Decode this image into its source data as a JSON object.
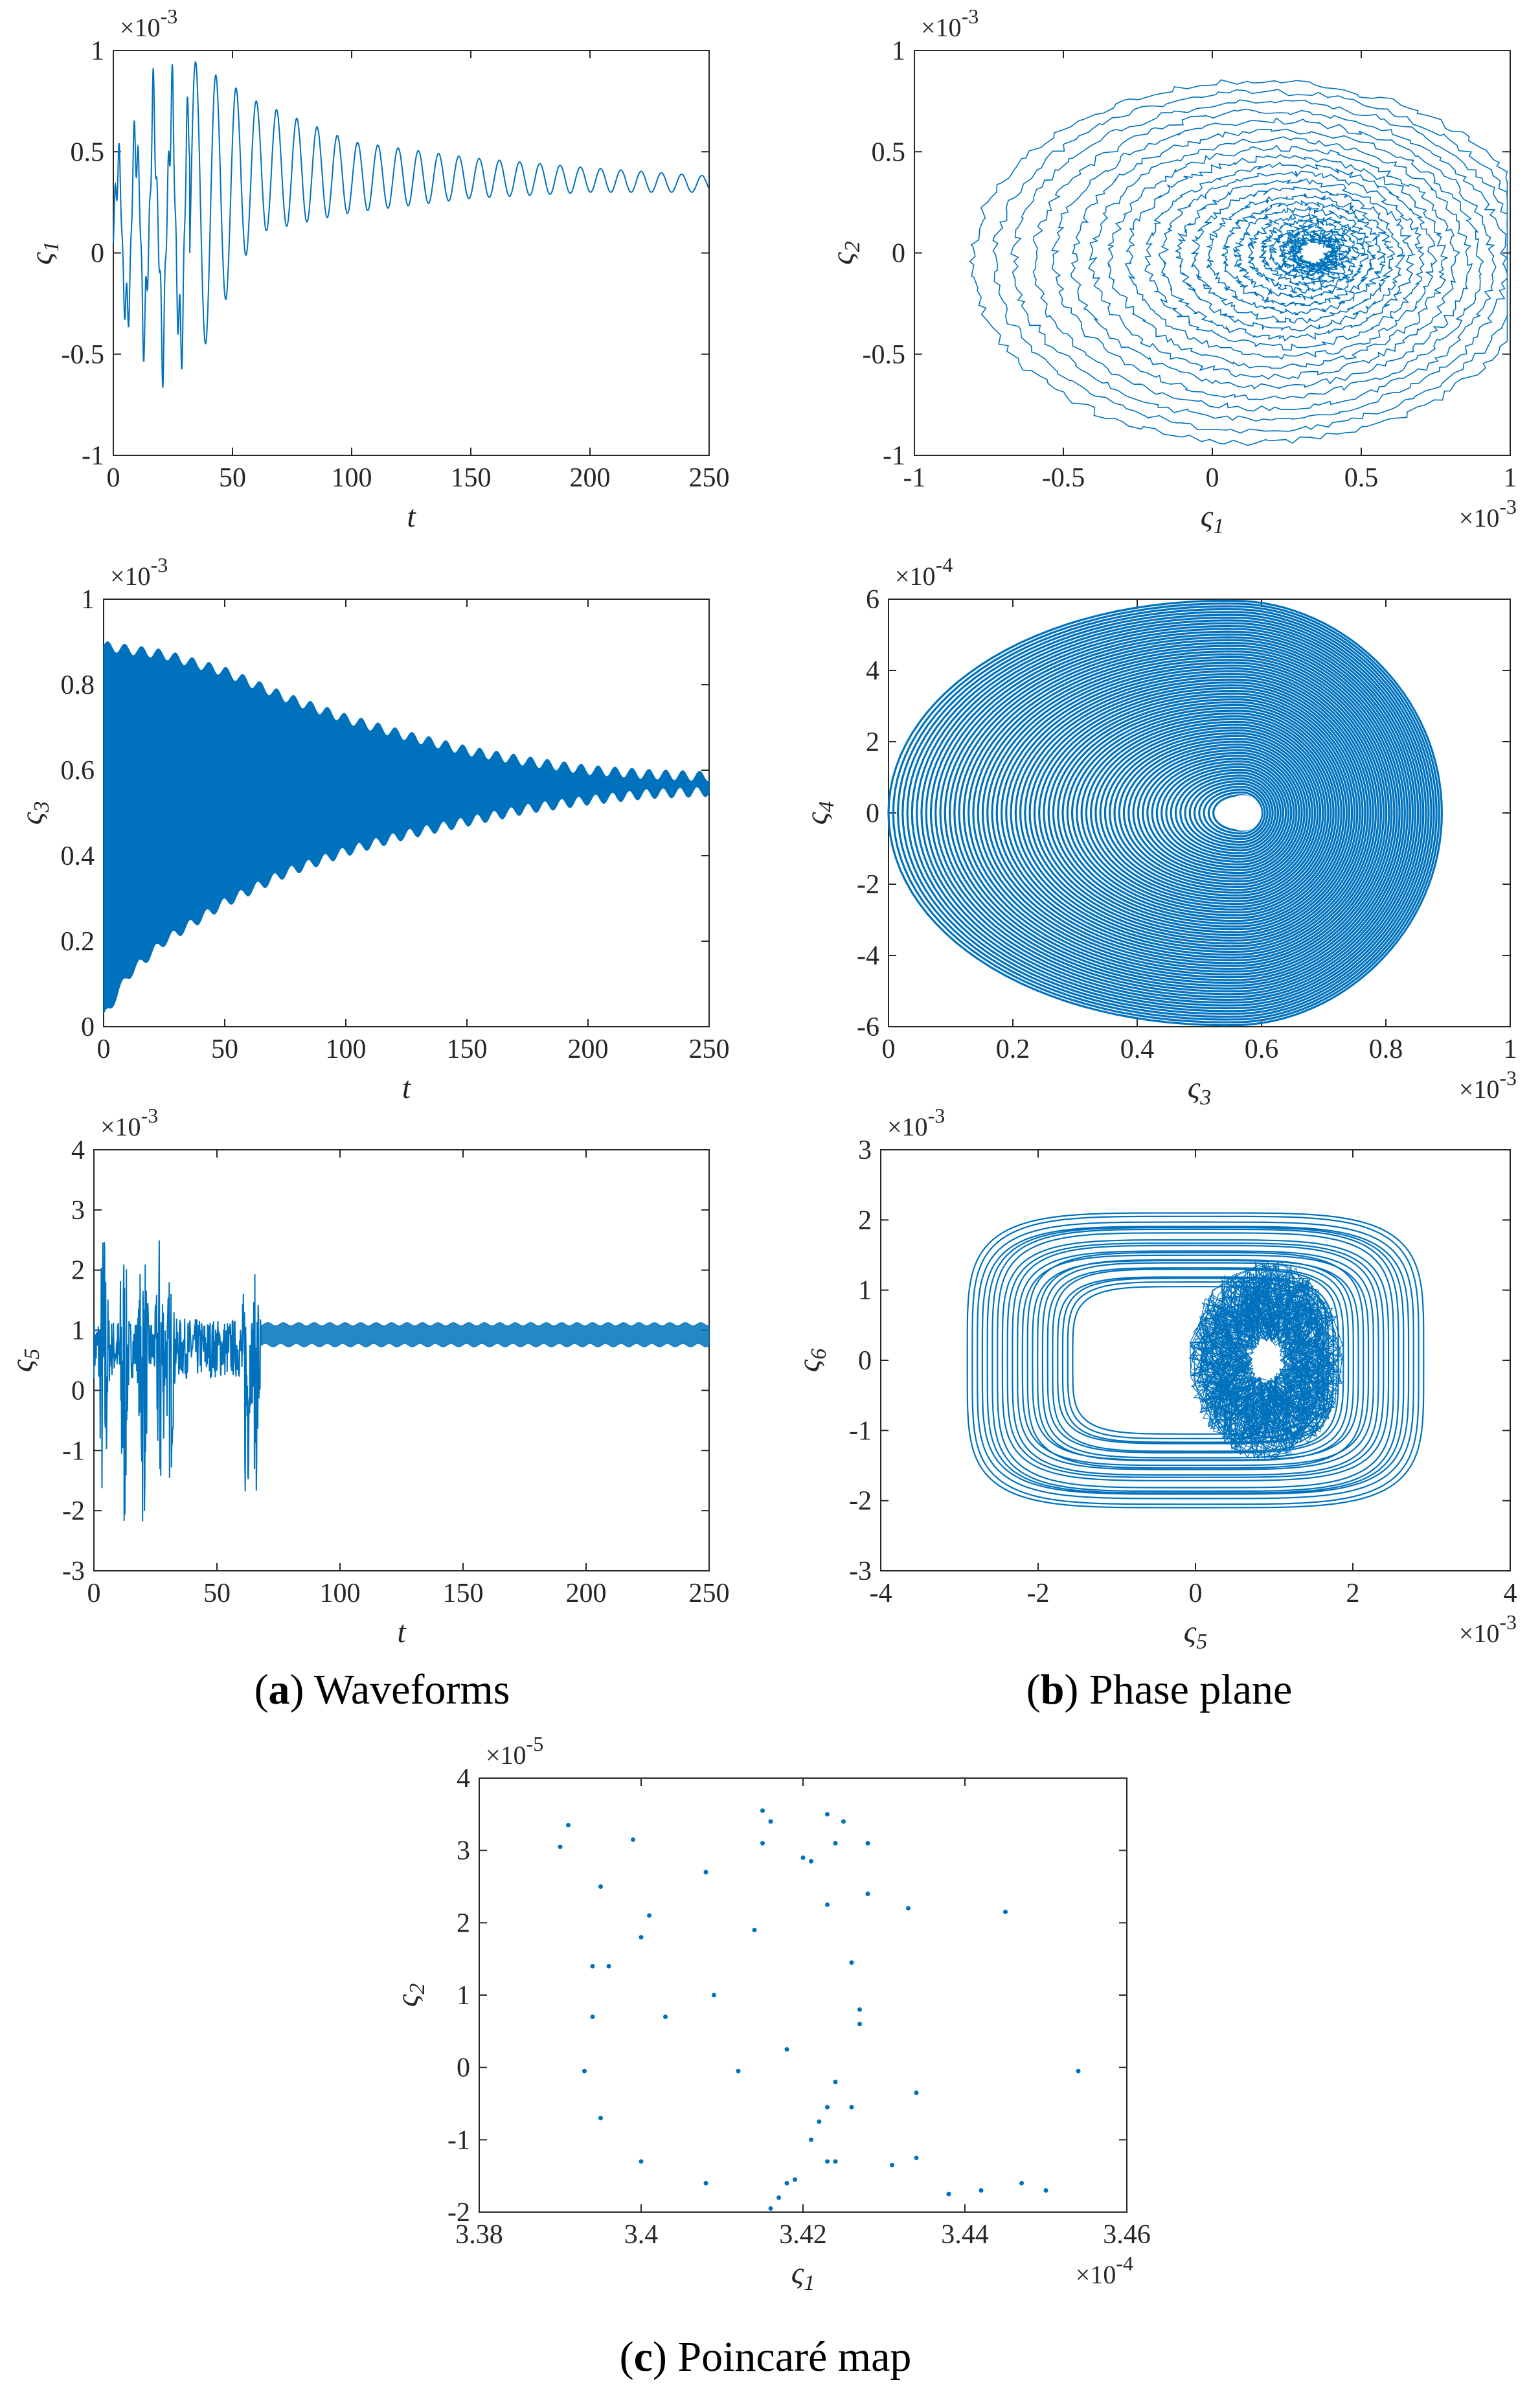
{
  "colors": {
    "line": "#0072BD",
    "axis": "#262626",
    "background": "#ffffff"
  },
  "captions": {
    "a": {
      "label": "a",
      "text": "Waveforms"
    },
    "b": {
      "label": "b",
      "text": "Phase plane"
    },
    "c": {
      "label": "c",
      "text": "Poincaré map"
    }
  },
  "chart_data": [
    {
      "id": "wave1",
      "type": "line",
      "panel": "a",
      "xlabel": "t",
      "ylabel": "ς1",
      "xlim": [
        0,
        250
      ],
      "ylim": [
        -1,
        1
      ],
      "xticks": [
        0,
        50,
        100,
        150,
        200,
        250
      ],
      "yticks": [
        -1,
        -0.5,
        0,
        0.5,
        1
      ],
      "xtick_labels": [
        "0",
        "50",
        "100",
        "150",
        "200",
        "250"
      ],
      "ytick_labels": [
        "-1",
        "-0.5",
        "0",
        "0.5",
        "1"
      ],
      "y_exponent": "×10-3",
      "x_exponent": "",
      "envelope": [
        [
          0,
          0.55,
          -0.45
        ],
        [
          15,
          0.9,
          -0.6
        ],
        [
          27,
          1.0,
          -0.75
        ],
        [
          60,
          0.75,
          0.1
        ],
        [
          100,
          0.55,
          0.2
        ],
        [
          150,
          0.47,
          0.27
        ],
        [
          200,
          0.42,
          0.3
        ],
        [
          250,
          0.38,
          0.3
        ]
      ],
      "equilibrium": 0.34,
      "period": 8.5,
      "grid": false
    },
    {
      "id": "phase12",
      "type": "line",
      "panel": "b",
      "xlabel": "ς1",
      "ylabel": "ς2",
      "xlim": [
        -1,
        1
      ],
      "ylim": [
        -1,
        1
      ],
      "xticks": [
        -1,
        -0.5,
        0,
        0.5,
        1
      ],
      "yticks": [
        -1,
        -0.5,
        0,
        0.5,
        1
      ],
      "xtick_labels": [
        "-1",
        "-0.5",
        "0",
        "0.5",
        "1"
      ],
      "ytick_labels": [
        "-1",
        "-0.5",
        "0",
        "0.5",
        "1"
      ],
      "y_exponent": "×10-3",
      "x_exponent": "×10-3",
      "center": [
        0.34,
        0.0
      ],
      "outer_orbit": {
        "x_range": [
          -0.73,
          0.99
        ],
        "y_range": [
          -0.92,
          0.8
        ]
      },
      "grid": false
    },
    {
      "id": "wave3",
      "type": "area",
      "panel": "a",
      "xlabel": "t",
      "ylabel": "ς3",
      "xlim": [
        0,
        250
      ],
      "ylim": [
        0,
        1
      ],
      "xticks": [
        0,
        50,
        100,
        150,
        200,
        250
      ],
      "yticks": [
        0,
        0.2,
        0.4,
        0.6,
        0.8,
        1
      ],
      "xtick_labels": [
        "0",
        "50",
        "100",
        "150",
        "200",
        "250"
      ],
      "ytick_labels": [
        "0",
        "0.2",
        "0.4",
        "0.6",
        "0.8",
        "1"
      ],
      "y_exponent": "×10-3",
      "x_exponent": "",
      "upper": [
        [
          0,
          0.89
        ],
        [
          25,
          0.87
        ],
        [
          50,
          0.83
        ],
        [
          75,
          0.77
        ],
        [
          100,
          0.72
        ],
        [
          125,
          0.68
        ],
        [
          150,
          0.645
        ],
        [
          175,
          0.62
        ],
        [
          200,
          0.6
        ],
        [
          225,
          0.59
        ],
        [
          250,
          0.585
        ]
      ],
      "lower": [
        [
          0,
          0.02
        ],
        [
          10,
          0.12
        ],
        [
          25,
          0.2
        ],
        [
          50,
          0.29
        ],
        [
          75,
          0.36
        ],
        [
          100,
          0.41
        ],
        [
          125,
          0.45
        ],
        [
          150,
          0.48
        ],
        [
          175,
          0.51
        ],
        [
          200,
          0.53
        ],
        [
          225,
          0.545
        ],
        [
          250,
          0.55
        ]
      ],
      "grid": false
    },
    {
      "id": "phase34",
      "type": "line",
      "panel": "b",
      "xlabel": "ς3",
      "ylabel": "ς4",
      "xlim": [
        0,
        1
      ],
      "ylim": [
        -6,
        6
      ],
      "xticks": [
        0,
        0.2,
        0.4,
        0.6,
        0.8,
        1
      ],
      "yticks": [
        -6,
        -4,
        -2,
        0,
        2,
        4,
        6
      ],
      "xtick_labels": [
        "0",
        "0.2",
        "0.4",
        "0.6",
        "0.8",
        "1"
      ],
      "ytick_labels": [
        "-6",
        "-4",
        "-2",
        "0",
        "2",
        "4",
        "6"
      ],
      "y_exponent": "×10-4",
      "x_exponent": "×10-3",
      "center": [
        0.57,
        0
      ],
      "hole": [
        0.57,
        0,
        0.03,
        0.5
      ],
      "outer_orbit": {
        "x_range": [
          0.0,
          0.89
        ],
        "y_range": [
          -6,
          6
        ]
      },
      "grid": false
    },
    {
      "id": "wave5",
      "type": "line",
      "panel": "a",
      "xlabel": "t",
      "ylabel": "ς5",
      "xlim": [
        0,
        250
      ],
      "ylim": [
        -3,
        4
      ],
      "xticks": [
        0,
        50,
        100,
        150,
        200,
        250
      ],
      "yticks": [
        -3,
        -2,
        -1,
        0,
        1,
        2,
        3,
        4
      ],
      "xtick_labels": [
        "0",
        "50",
        "100",
        "150",
        "200",
        "250"
      ],
      "ytick_labels": [
        "-3",
        "-2",
        "-1",
        "0",
        "1",
        "2",
        "3",
        "4"
      ],
      "y_exponent": "×10-3",
      "x_exponent": "",
      "settled_band": [
        0.75,
        1.1
      ],
      "transient_end": 68,
      "bursts": [
        [
          4,
          3.0,
          -2.8
        ],
        [
          12,
          2.8,
          -2.9
        ],
        [
          20,
          2.9,
          -2.5
        ],
        [
          27,
          2.9,
          -2.3
        ],
        [
          31,
          2.0,
          -1.6
        ],
        [
          62,
          2.3,
          -2.2
        ],
        [
          66,
          2.1,
          -1.8
        ]
      ],
      "grid": false
    },
    {
      "id": "phase56",
      "type": "line",
      "panel": "b",
      "xlabel": "ς5",
      "ylabel": "ς6",
      "xlim": [
        -4,
        4
      ],
      "ylim": [
        -3,
        3
      ],
      "xticks": [
        -4,
        -2,
        0,
        2,
        4
      ],
      "yticks": [
        -3,
        -2,
        -1,
        0,
        1,
        2,
        3
      ],
      "xtick_labels": [
        "-4",
        "-2",
        "0",
        "2",
        "4"
      ],
      "ytick_labels": [
        "-3",
        "-2",
        "-1",
        "0",
        "1",
        "2",
        "3"
      ],
      "y_exponent": "×10-3",
      "x_exponent": "×10-3",
      "center": [
        0.9,
        0
      ],
      "outer_orbit": {
        "x_range": [
          -2.9,
          2.9
        ],
        "y_range": [
          -2.1,
          2.1
        ]
      },
      "grid": false
    },
    {
      "id": "poincare",
      "type": "scatter",
      "panel": "c",
      "xlabel": "ς1",
      "ylabel": "ς2",
      "xlim": [
        3.38,
        3.46
      ],
      "ylim": [
        -2,
        4
      ],
      "xticks": [
        3.38,
        3.4,
        3.42,
        3.44,
        3.46
      ],
      "yticks": [
        -2,
        -1,
        0,
        1,
        2,
        3,
        4
      ],
      "xtick_labels": [
        "3.38",
        "3.4",
        "3.42",
        "3.44",
        "3.46"
      ],
      "ytick_labels": [
        "-2",
        "-1",
        "0",
        "1",
        "2",
        "3",
        "4"
      ],
      "y_exponent": "×10-5",
      "x_exponent": "×10-4",
      "points": [
        [
          3.391,
          3.35
        ],
        [
          3.39,
          3.05
        ],
        [
          3.399,
          3.15
        ],
        [
          3.395,
          2.5
        ],
        [
          3.401,
          2.1
        ],
        [
          3.4,
          1.8
        ],
        [
          3.394,
          1.4
        ],
        [
          3.396,
          1.4
        ],
        [
          3.394,
          0.7
        ],
        [
          3.393,
          -0.05
        ],
        [
          3.395,
          -0.7
        ],
        [
          3.4,
          -1.3
        ],
        [
          3.403,
          0.7
        ],
        [
          3.408,
          2.7
        ],
        [
          3.409,
          1.0
        ],
        [
          3.408,
          -1.6
        ],
        [
          3.412,
          -0.05
        ],
        [
          3.415,
          3.55
        ],
        [
          3.416,
          3.4
        ],
        [
          3.415,
          3.1
        ],
        [
          3.414,
          1.9
        ],
        [
          3.42,
          2.9
        ],
        [
          3.421,
          2.85
        ],
        [
          3.423,
          3.5
        ],
        [
          3.425,
          3.4
        ],
        [
          3.424,
          3.1
        ],
        [
          3.428,
          3.1
        ],
        [
          3.423,
          2.25
        ],
        [
          3.428,
          2.4
        ],
        [
          3.426,
          1.45
        ],
        [
          3.427,
          0.8
        ],
        [
          3.427,
          0.6
        ],
        [
          3.418,
          0.25
        ],
        [
          3.424,
          -0.2
        ],
        [
          3.423,
          -0.55
        ],
        [
          3.422,
          -0.75
        ],
        [
          3.421,
          -1.0
        ],
        [
          3.426,
          -0.55
        ],
        [
          3.419,
          -1.55
        ],
        [
          3.418,
          -1.6
        ],
        [
          3.417,
          -1.8
        ],
        [
          3.416,
          -1.95
        ],
        [
          3.423,
          -1.3
        ],
        [
          3.424,
          -1.3
        ],
        [
          3.431,
          -1.35
        ],
        [
          3.434,
          -1.25
        ],
        [
          3.434,
          -0.35
        ],
        [
          3.433,
          2.2
        ],
        [
          3.445,
          2.15
        ],
        [
          3.438,
          -1.75
        ],
        [
          3.442,
          -1.7
        ],
        [
          3.447,
          -1.6
        ],
        [
          3.45,
          -1.7
        ],
        [
          3.454,
          -0.05
        ]
      ],
      "grid": false
    }
  ]
}
